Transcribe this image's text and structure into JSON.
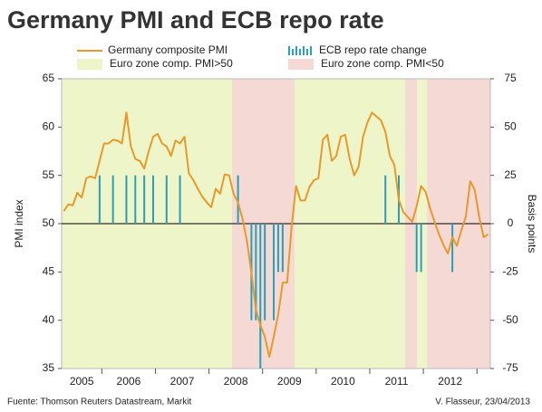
{
  "chart_data": {
    "type": "line",
    "title": "Germany PMI and ECB repo rate",
    "ylabel": "PMI index",
    "y2label": "Basis points",
    "source": "Fuente: Thomson Reuters Datastream, Markit",
    "credit": "V. Flasseur, 23/04/2013",
    "xlim": [
      2005.25,
      2013.25
    ],
    "xticks": [
      2005,
      2006,
      2007,
      2008,
      2009,
      2010,
      2011,
      2012
    ],
    "ylim": [
      35,
      65
    ],
    "yticks": [
      35,
      40,
      45,
      50,
      55,
      60,
      65
    ],
    "y2lim": [
      -75,
      75
    ],
    "y2ticks": [
      -75,
      -50,
      -25,
      0,
      25,
      50,
      75
    ],
    "series": [
      {
        "name": "Germany composite PMI",
        "type": "line",
        "color": "#e8992b",
        "values": [
          51.3,
          52,
          51.9,
          53.2,
          52.7,
          54.7,
          54.9,
          54.7,
          56.5,
          58.3,
          58.3,
          58.7,
          58.6,
          58.3,
          61.5,
          58,
          56.7,
          56.5,
          55.7,
          57.5,
          59,
          59.3,
          58.3,
          58,
          57,
          58.6,
          58.3,
          59,
          55.2,
          54.5,
          53.6,
          52.8,
          52.2,
          51.7,
          53.6,
          53.1,
          55.1,
          55,
          53.1,
          52.2,
          50.5,
          48.2,
          44.9,
          41.1,
          39.5,
          38.3,
          36.2,
          38.3,
          40.6,
          43.9,
          43.9,
          49.7,
          53.9,
          52.4,
          52.4,
          53.8,
          54.5,
          54.7,
          58.7,
          59.2,
          56.5,
          57,
          59,
          59.2,
          56.7,
          55,
          55.9,
          59,
          60.5,
          61.5,
          61.1,
          60.7,
          59.5,
          57,
          56.1,
          52.5,
          51.2,
          50.7,
          50.2,
          51.8,
          53.9,
          53.3,
          51.6,
          50.2,
          48.9,
          47.8,
          46.9,
          48.6,
          47.7,
          49.3,
          50.7,
          54.4,
          53.5,
          50.7,
          48.6,
          48.9
        ]
      },
      {
        "name": "ECB repo rate change",
        "type": "bar",
        "axis": "y2",
        "color": "#2a9fb5",
        "values": [
          null,
          null,
          null,
          null,
          null,
          null,
          null,
          null,
          25,
          null,
          null,
          25,
          null,
          null,
          25,
          null,
          25,
          null,
          25,
          null,
          25,
          null,
          null,
          25,
          null,
          null,
          25,
          null,
          null,
          null,
          null,
          null,
          null,
          null,
          null,
          null,
          null,
          null,
          null,
          25,
          null,
          null,
          -50,
          -50,
          -75,
          -50,
          null,
          -50,
          -25,
          -25,
          null,
          null,
          null,
          null,
          null,
          null,
          null,
          null,
          null,
          null,
          null,
          null,
          null,
          null,
          null,
          null,
          null,
          null,
          null,
          null,
          null,
          null,
          25,
          null,
          null,
          25,
          null,
          null,
          null,
          -25,
          -25,
          null,
          null,
          null,
          null,
          null,
          null,
          -25,
          null,
          null,
          null,
          null,
          null,
          null,
          null,
          null
        ]
      }
    ],
    "bands": [
      {
        "name": "Euro zone comp. PMI>50",
        "color": "#eef5c9",
        "spans": [
          [
            2005.25,
            2008.43
          ],
          [
            2009.6,
            2011.66
          ],
          [
            2011.88,
            2012.07
          ]
        ]
      },
      {
        "name": "Euro zone comp. PMI<50",
        "color": "#f5d9d4",
        "spans": [
          [
            2008.43,
            2009.6
          ],
          [
            2011.66,
            2011.88
          ],
          [
            2012.07,
            2013.25
          ]
        ]
      }
    ]
  }
}
